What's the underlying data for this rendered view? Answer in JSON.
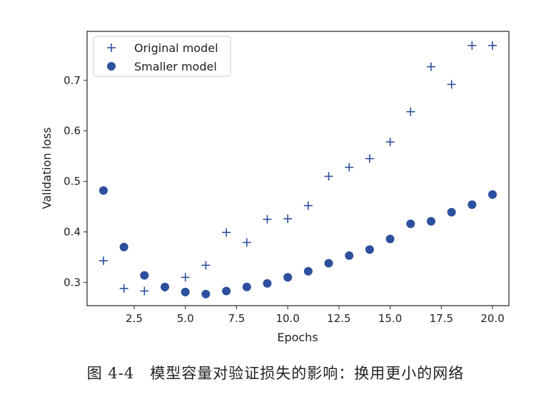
{
  "chart_data": {
    "type": "scatter",
    "xlabel": "Epochs",
    "ylabel": "Validation loss",
    "xlim": [
      0.2,
      20.8
    ],
    "ylim": [
      0.254,
      0.797
    ],
    "x_ticks": [
      2.5,
      5.0,
      7.5,
      10.0,
      12.5,
      15.0,
      17.5,
      20.0
    ],
    "x_tick_labels": [
      "2.5",
      "5.0",
      "7.5",
      "10.0",
      "12.5",
      "15.0",
      "17.5",
      "20.0"
    ],
    "y_ticks": [
      0.3,
      0.4,
      0.5,
      0.6,
      0.7
    ],
    "y_tick_labels": [
      "0.3",
      "0.4",
      "0.5",
      "0.6",
      "0.7"
    ],
    "legend_position": "top-left",
    "series": [
      {
        "name": "Original model",
        "marker": "+",
        "color": "#2c4f9e",
        "x": [
          1,
          2,
          3,
          4,
          5,
          6,
          7,
          8,
          9,
          10,
          11,
          12,
          13,
          14,
          15,
          16,
          17,
          18,
          19,
          20
        ],
        "values": [
          0.343,
          0.288,
          0.283,
          0.29,
          0.31,
          0.334,
          0.399,
          0.379,
          0.425,
          0.426,
          0.452,
          0.51,
          0.528,
          0.545,
          0.578,
          0.638,
          0.727,
          0.692,
          0.769,
          0.769
        ]
      },
      {
        "name": "Smaller model",
        "marker": "o",
        "color": "#2c4f9e",
        "x": [
          1,
          2,
          3,
          4,
          5,
          6,
          7,
          8,
          9,
          10,
          11,
          12,
          13,
          14,
          15,
          16,
          17,
          18,
          19,
          20
        ],
        "values": [
          0.482,
          0.37,
          0.314,
          0.291,
          0.281,
          0.277,
          0.283,
          0.291,
          0.298,
          0.31,
          0.322,
          0.338,
          0.353,
          0.365,
          0.386,
          0.416,
          0.421,
          0.439,
          0.454,
          0.474
        ]
      }
    ]
  },
  "caption": "图 4-4　模型容量对验证损失的影响：换用更小的网络"
}
